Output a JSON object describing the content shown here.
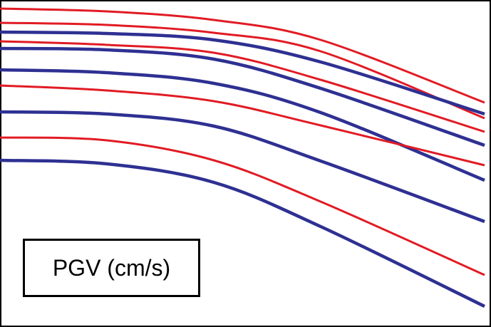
{
  "chart_data": {
    "type": "line",
    "title": "",
    "xlabel": "",
    "ylabel": "",
    "grid": false,
    "label_box": "PGV (cm/s)",
    "colors": {
      "red": "#e11b24",
      "blue": "#2e3092",
      "frame": "#000000"
    },
    "series": [
      {
        "color": "red",
        "values": [
          [
            0,
            12
          ],
          [
            150,
            16
          ],
          [
            300,
            28
          ],
          [
            450,
            56
          ],
          [
            680,
            144
          ]
        ]
      },
      {
        "color": "red",
        "values": [
          [
            0,
            32
          ],
          [
            150,
            35
          ],
          [
            300,
            46
          ],
          [
            450,
            72
          ],
          [
            680,
            166
          ]
        ]
      },
      {
        "color": "blue",
        "values": [
          [
            0,
            45
          ],
          [
            150,
            47
          ],
          [
            300,
            56
          ],
          [
            450,
            87
          ],
          [
            680,
            160
          ]
        ]
      },
      {
        "color": "red",
        "values": [
          [
            0,
            58
          ],
          [
            150,
            63
          ],
          [
            300,
            74
          ],
          [
            450,
            112
          ],
          [
            680,
            185
          ]
        ]
      },
      {
        "color": "blue",
        "values": [
          [
            0,
            68
          ],
          [
            150,
            70
          ],
          [
            300,
            83
          ],
          [
            450,
            124
          ],
          [
            680,
            204
          ]
        ]
      },
      {
        "color": "blue",
        "values": [
          [
            0,
            98
          ],
          [
            150,
            102
          ],
          [
            300,
            117
          ],
          [
            450,
            158
          ],
          [
            680,
            253
          ]
        ]
      },
      {
        "color": "red",
        "values": [
          [
            0,
            120
          ],
          [
            150,
            127
          ],
          [
            300,
            142
          ],
          [
            450,
            176
          ],
          [
            680,
            232
          ]
        ]
      },
      {
        "color": "blue",
        "values": [
          [
            0,
            157
          ],
          [
            150,
            160
          ],
          [
            300,
            177
          ],
          [
            450,
            226
          ],
          [
            680,
            311
          ]
        ]
      },
      {
        "color": "red",
        "values": [
          [
            0,
            193
          ],
          [
            150,
            197
          ],
          [
            300,
            225
          ],
          [
            450,
            283
          ],
          [
            680,
            386
          ]
        ]
      },
      {
        "color": "blue",
        "values": [
          [
            0,
            225
          ],
          [
            150,
            230
          ],
          [
            300,
            256
          ],
          [
            450,
            318
          ],
          [
            680,
            430
          ]
        ]
      }
    ]
  }
}
